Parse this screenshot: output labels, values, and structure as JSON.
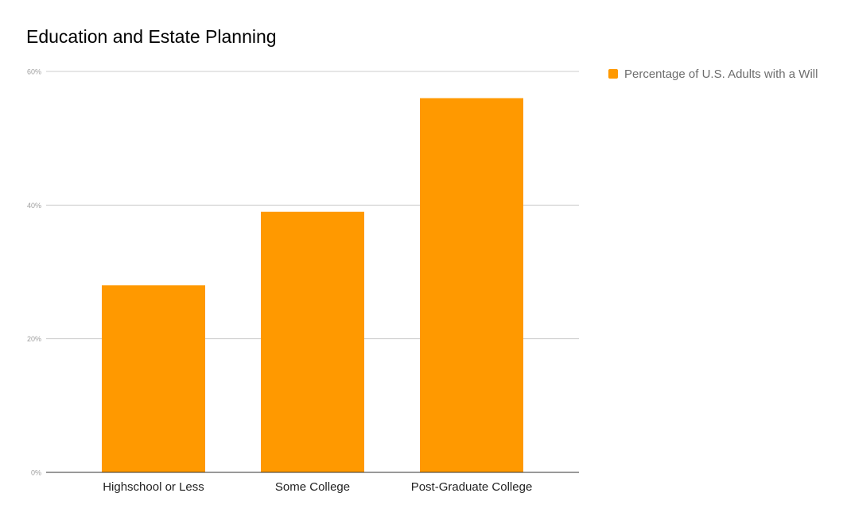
{
  "chart_data": {
    "type": "bar",
    "title": "Education and Estate Planning",
    "categories": [
      "Highschool or Less",
      "Some College",
      "Post-Graduate College"
    ],
    "series": [
      {
        "name": "Percentage of U.S. Adults with a Will",
        "values": [
          28,
          39,
          56
        ],
        "color": "#ff9900"
      }
    ],
    "yticks": [
      "0%",
      "20%",
      "40%",
      "60%"
    ],
    "ylim": [
      0,
      60
    ],
    "xlabel": "",
    "ylabel": "",
    "grid": true,
    "legend_position": "right"
  }
}
